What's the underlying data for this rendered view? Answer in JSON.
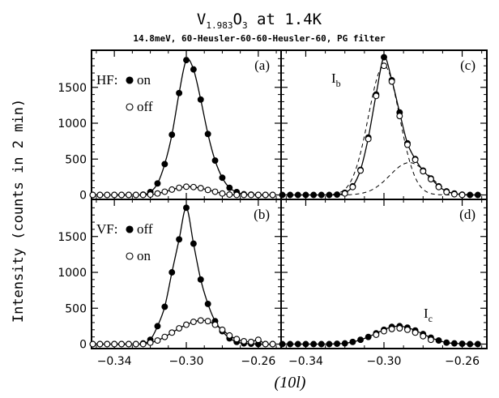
{
  "title": {
    "main": "V",
    "sub": "1.983",
    "main2": "O",
    "sub2": "3",
    "rest": " at 1.4K"
  },
  "subtitle": "14.8meV, 60-Heusler-60-60-Heusler-60, PG filter",
  "ylabel": "Intensity (counts in 2 min)",
  "xlabel": "(10l)",
  "chart_data": [
    {
      "type": "line",
      "panel": "a",
      "label": "(a)",
      "xlim": [
        -0.352,
        -0.248
      ],
      "ylim": [
        0,
        2000
      ],
      "xticks": [
        -0.34,
        -0.3,
        -0.26
      ],
      "xticklabels": [],
      "yticks": [
        0,
        500,
        1000,
        1500
      ],
      "yticklabels": [
        "0",
        "500",
        "1000",
        "1500"
      ],
      "legend": {
        "prefix": "HF:",
        "entries": [
          "on",
          "off"
        ]
      },
      "series": [
        {
          "name": "on",
          "marker": "filled",
          "fit": true,
          "x": [
            -0.352,
            -0.348,
            -0.344,
            -0.34,
            -0.336,
            -0.332,
            -0.328,
            -0.324,
            -0.32,
            -0.316,
            -0.312,
            -0.308,
            -0.304,
            -0.3,
            -0.296,
            -0.292,
            -0.288,
            -0.284,
            -0.28,
            -0.276,
            -0.272,
            -0.268,
            -0.264,
            -0.26,
            -0.256,
            -0.252
          ],
          "y": [
            0,
            0,
            0,
            0,
            0,
            0,
            0,
            5,
            40,
            160,
            430,
            840,
            1420,
            1880,
            1750,
            1330,
            850,
            480,
            240,
            100,
            40,
            10,
            5,
            0,
            0,
            0
          ]
        },
        {
          "name": "off",
          "marker": "open",
          "fit": true,
          "x": [
            -0.352,
            -0.348,
            -0.344,
            -0.34,
            -0.336,
            -0.332,
            -0.328,
            -0.324,
            -0.32,
            -0.316,
            -0.312,
            -0.308,
            -0.304,
            -0.3,
            -0.296,
            -0.292,
            -0.288,
            -0.284,
            -0.28,
            -0.276,
            -0.272,
            -0.268,
            -0.264,
            -0.26,
            -0.256,
            -0.252
          ],
          "y": [
            0,
            0,
            0,
            0,
            0,
            0,
            0,
            0,
            5,
            20,
            45,
            75,
            100,
            115,
            110,
            95,
            70,
            45,
            20,
            5,
            0,
            0,
            0,
            0,
            0,
            0
          ]
        }
      ]
    },
    {
      "type": "line",
      "panel": "b",
      "label": "(b)",
      "xlim": [
        -0.352,
        -0.248
      ],
      "ylim": [
        0,
        2000
      ],
      "xticks": [
        -0.34,
        -0.3,
        -0.26
      ],
      "xticklabels": [
        "-0.34",
        "-0.30",
        "-0.26"
      ],
      "yticks": [
        0,
        500,
        1000,
        1500
      ],
      "yticklabels": [
        "0",
        "500",
        "1000",
        "1500"
      ],
      "legend": {
        "prefix": "VF:",
        "entries": [
          "off",
          "on"
        ]
      },
      "series": [
        {
          "name": "off",
          "marker": "filled",
          "fit": true,
          "x": [
            -0.352,
            -0.348,
            -0.344,
            -0.34,
            -0.336,
            -0.332,
            -0.328,
            -0.324,
            -0.32,
            -0.316,
            -0.312,
            -0.308,
            -0.304,
            -0.3,
            -0.296,
            -0.292,
            -0.288,
            -0.284,
            -0.28,
            -0.276,
            -0.272,
            -0.268,
            -0.264,
            -0.26,
            -0.256,
            -0.252
          ],
          "y": [
            0,
            0,
            0,
            0,
            0,
            0,
            0,
            10,
            60,
            250,
            520,
            1000,
            1460,
            1900,
            1400,
            900,
            560,
            320,
            180,
            80,
            30,
            10,
            5,
            0,
            0,
            0
          ]
        },
        {
          "name": "on",
          "marker": "open",
          "fit": true,
          "x": [
            -0.352,
            -0.348,
            -0.344,
            -0.34,
            -0.336,
            -0.332,
            -0.328,
            -0.324,
            -0.32,
            -0.316,
            -0.312,
            -0.308,
            -0.304,
            -0.3,
            -0.296,
            -0.292,
            -0.288,
            -0.284,
            -0.28,
            -0.276,
            -0.272,
            -0.268,
            -0.264,
            -0.26,
            -0.256,
            -0.252
          ],
          "y": [
            0,
            0,
            0,
            0,
            0,
            0,
            0,
            0,
            20,
            50,
            100,
            160,
            220,
            270,
            310,
            330,
            320,
            270,
            200,
            120,
            70,
            40,
            30,
            60,
            0,
            0
          ]
        }
      ]
    },
    {
      "type": "line",
      "panel": "c",
      "label": "(c)",
      "annotation": {
        "main": "I",
        "sub": "b"
      },
      "xlim": [
        -0.352,
        -0.248
      ],
      "ylim": [
        0,
        2000
      ],
      "xticks": [
        -0.34,
        -0.3,
        -0.26
      ],
      "xticklabels": [],
      "yticks": [
        0,
        500,
        1000,
        1500
      ],
      "yticklabels": [],
      "series": [
        {
          "name": "",
          "marker": "filled",
          "fit": true,
          "x": [
            -0.352,
            -0.348,
            -0.344,
            -0.34,
            -0.336,
            -0.332,
            -0.328,
            -0.324,
            -0.32,
            -0.316,
            -0.312,
            -0.308,
            -0.304,
            -0.3,
            -0.296,
            -0.292,
            -0.288,
            -0.284,
            -0.28,
            -0.276,
            -0.272,
            -0.268,
            -0.264,
            -0.26,
            -0.256,
            -0.252
          ],
          "y": [
            0,
            0,
            0,
            0,
            0,
            0,
            0,
            5,
            30,
            120,
            350,
            800,
            1400,
            1920,
            1600,
            1150,
            720,
            500,
            340,
            230,
            120,
            50,
            20,
            5,
            0,
            0
          ]
        },
        {
          "name": "",
          "marker": "open",
          "fit": false,
          "x": [
            -0.32,
            -0.316,
            -0.312,
            -0.308,
            -0.304,
            -0.3,
            -0.296,
            -0.292,
            -0.288,
            -0.284,
            -0.28,
            -0.276,
            -0.272,
            -0.268,
            -0.264,
            -0.26
          ],
          "y": [
            20,
            110,
            340,
            780,
            1380,
            1800,
            1580,
            1100,
            700,
            490,
            330,
            220,
            110,
            40,
            10,
            0
          ]
        }
      ],
      "components": [
        {
          "center": -0.3,
          "width": 0.008,
          "amp": 1800
        },
        {
          "center": -0.287,
          "width": 0.01,
          "amp": 450
        }
      ]
    },
    {
      "type": "line",
      "panel": "d",
      "label": "(d)",
      "annotation": {
        "main": "I",
        "sub": "c"
      },
      "xlim": [
        -0.352,
        -0.248
      ],
      "ylim": [
        0,
        2000
      ],
      "xticks": [
        -0.34,
        -0.3,
        -0.26
      ],
      "xticklabels": [
        "-0.34",
        "-0.30",
        "-0.26"
      ],
      "yticks": [
        0,
        500,
        1000,
        1500
      ],
      "yticklabels": [],
      "series": [
        {
          "name": "",
          "marker": "filled",
          "fit": true,
          "x": [
            -0.352,
            -0.348,
            -0.344,
            -0.34,
            -0.336,
            -0.332,
            -0.328,
            -0.324,
            -0.32,
            -0.316,
            -0.312,
            -0.308,
            -0.304,
            -0.3,
            -0.296,
            -0.292,
            -0.288,
            -0.284,
            -0.28,
            -0.276,
            -0.272,
            -0.268,
            -0.264,
            -0.26,
            -0.256,
            -0.252
          ],
          "y": [
            0,
            0,
            0,
            0,
            0,
            0,
            0,
            5,
            10,
            30,
            60,
            100,
            150,
            200,
            240,
            250,
            230,
            190,
            140,
            90,
            50,
            20,
            10,
            5,
            0,
            0
          ]
        },
        {
          "name": "",
          "marker": "open",
          "fit": false,
          "x": [
            -0.304,
            -0.3,
            -0.296,
            -0.292,
            -0.288,
            -0.284,
            -0.28,
            -0.276
          ],
          "y": [
            130,
            180,
            210,
            220,
            200,
            160,
            110,
            60
          ]
        }
      ]
    }
  ]
}
